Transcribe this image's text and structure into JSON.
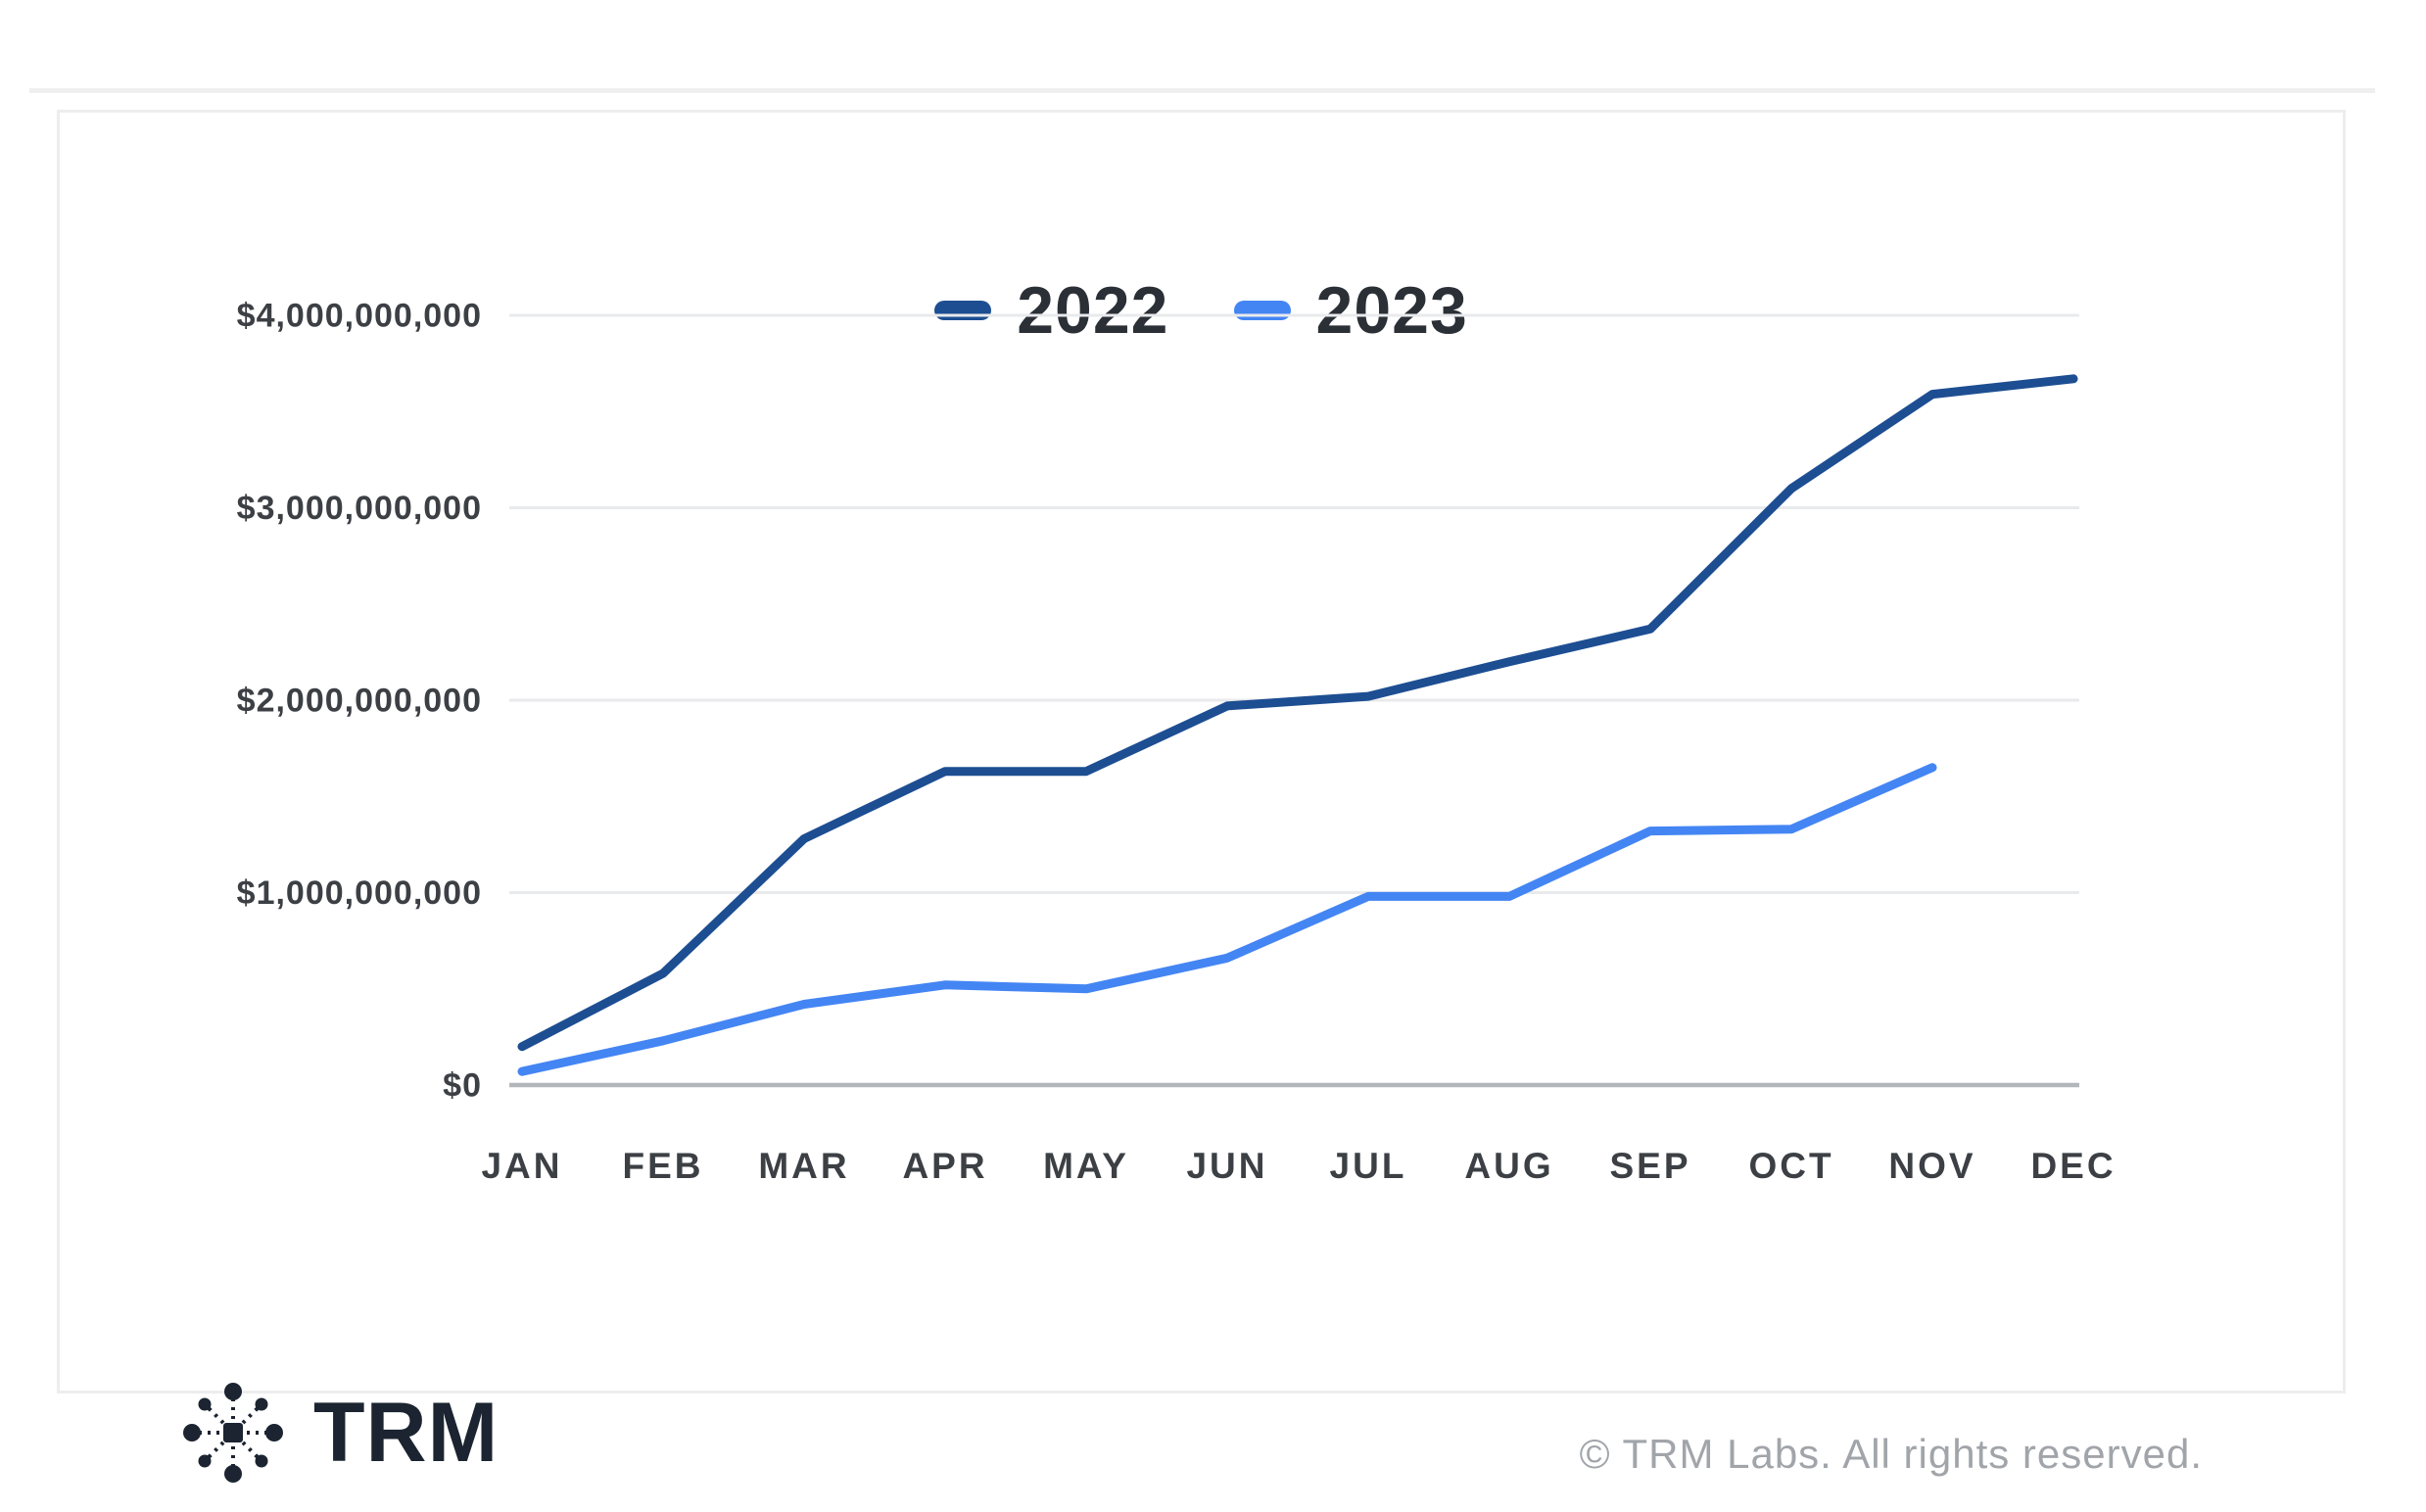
{
  "page": {
    "logo_text": "TRM",
    "copyright": "© TRM Labs. All rights reserved."
  },
  "legend": [
    {
      "label": "2022",
      "color": "#1d4e92"
    },
    {
      "label": "2023",
      "color": "#4485f4"
    }
  ],
  "colors": {
    "series_2022": "#1d4e92",
    "series_2023": "#4485f4",
    "grid_line": "#e9eaec",
    "zero_axis": "#b3b6ba",
    "axis_text": "#3c4045",
    "legend_text": "#2b2f36",
    "logo": "#1b2430",
    "copyright_text": "#a1a5aa",
    "card_border": "#ededed"
  },
  "chart_data": {
    "type": "line",
    "title": "",
    "categories": [
      "JAN",
      "FEB",
      "MAR",
      "APR",
      "MAY",
      "JUN",
      "JUL",
      "AUG",
      "SEP",
      "OCT",
      "NOV",
      "DEC"
    ],
    "series": [
      {
        "name": "2022",
        "color": "#1d4e92",
        "values_usd_billions": [
          0.2,
          0.58,
          1.28,
          1.63,
          1.63,
          1.97,
          2.02,
          2.2,
          2.37,
          3.1,
          3.59,
          3.67
        ]
      },
      {
        "name": "2023",
        "color": "#4485f4",
        "values_usd_billions": [
          0.07,
          0.23,
          0.42,
          0.52,
          0.5,
          0.66,
          0.98,
          0.98,
          1.32,
          1.33,
          1.65
        ]
      }
    ],
    "y_axis": {
      "min": 0,
      "max": 4000000000,
      "tick_values_billions": [
        0,
        1,
        2,
        3,
        4
      ],
      "tick_labels": [
        "$0",
        "$1,000,000,000",
        "$2,000,000,000",
        "$3,000,000,000",
        "$4,000,000,000"
      ]
    },
    "x_axis_note": "2023 series ends at NOV",
    "grid": "horizontal",
    "legend_position": "top-center"
  }
}
